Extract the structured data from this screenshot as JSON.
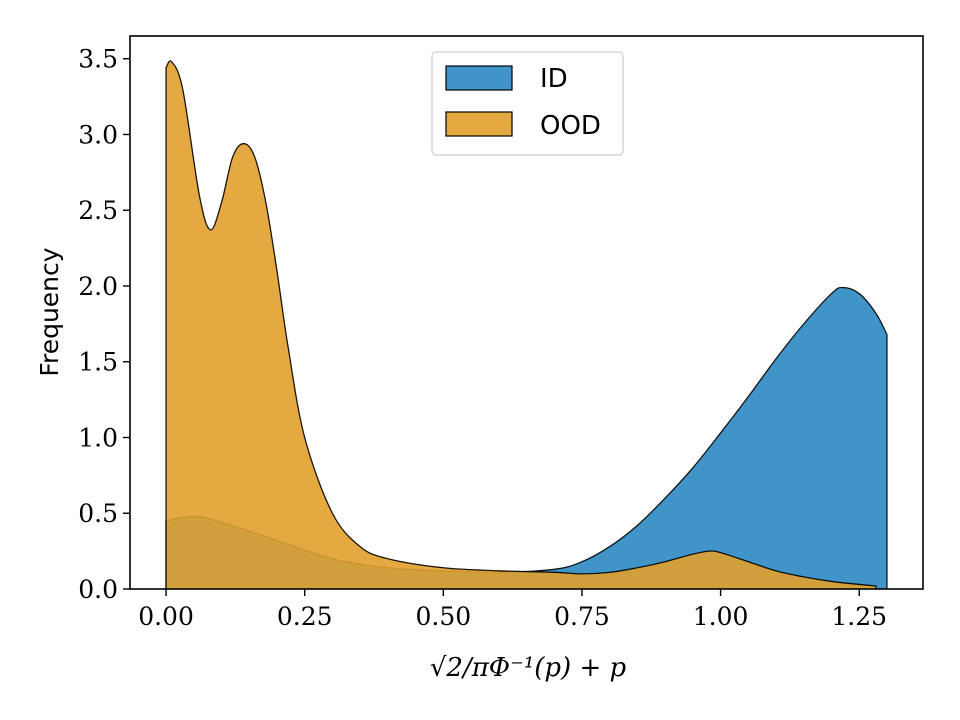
{
  "chart_data": {
    "type": "area",
    "title": "",
    "xlabel": "√2/πΦ⁻¹(p) + p",
    "ylabel": "Frequency",
    "xlim": [
      -0.065,
      1.365
    ],
    "ylim": [
      0,
      3.65
    ],
    "x_ticks": [
      0.0,
      0.25,
      0.5,
      0.75,
      1.0,
      1.25
    ],
    "x_tick_labels": [
      "0.00",
      "0.25",
      "0.50",
      "0.75",
      "1.00",
      "1.25"
    ],
    "y_ticks": [
      0.0,
      0.5,
      1.0,
      1.5,
      2.0,
      2.5,
      3.0,
      3.5
    ],
    "y_tick_labels": [
      "0.0",
      "0.5",
      "1.0",
      "1.5",
      "2.0",
      "2.5",
      "3.0",
      "3.5"
    ],
    "legend_position": "top-center",
    "series": [
      {
        "name": "ID",
        "color": "#2b88c1",
        "fill_opacity": 0.9,
        "x": [
          0.0,
          0.05,
          0.1,
          0.2,
          0.3,
          0.4,
          0.5,
          0.6,
          0.7,
          0.75,
          0.8,
          0.85,
          0.9,
          0.95,
          1.0,
          1.05,
          1.1,
          1.15,
          1.2,
          1.22,
          1.25,
          1.28,
          1.3
        ],
        "y": [
          0.45,
          0.48,
          0.44,
          0.32,
          0.2,
          0.14,
          0.12,
          0.11,
          0.13,
          0.18,
          0.28,
          0.42,
          0.6,
          0.8,
          1.03,
          1.27,
          1.52,
          1.75,
          1.95,
          1.99,
          1.95,
          1.82,
          1.68
        ]
      },
      {
        "name": "OOD",
        "color": "#e2a02e",
        "fill_opacity": 0.9,
        "x": [
          0.0,
          0.01,
          0.03,
          0.06,
          0.08,
          0.1,
          0.12,
          0.14,
          0.16,
          0.18,
          0.2,
          0.22,
          0.25,
          0.3,
          0.35,
          0.4,
          0.5,
          0.6,
          0.7,
          0.75,
          0.8,
          0.85,
          0.9,
          0.95,
          0.98,
          1.0,
          1.05,
          1.1,
          1.15,
          1.2,
          1.25,
          1.28
        ],
        "y": [
          3.44,
          3.48,
          3.3,
          2.6,
          2.37,
          2.55,
          2.85,
          2.94,
          2.85,
          2.55,
          2.1,
          1.6,
          1.0,
          0.5,
          0.28,
          0.2,
          0.14,
          0.12,
          0.11,
          0.1,
          0.11,
          0.14,
          0.18,
          0.23,
          0.25,
          0.24,
          0.18,
          0.12,
          0.08,
          0.05,
          0.03,
          0.02
        ]
      }
    ]
  }
}
